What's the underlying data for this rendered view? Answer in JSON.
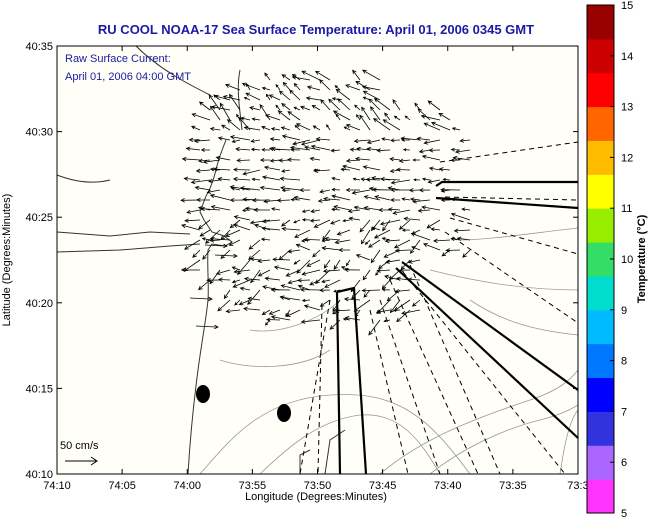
{
  "title": "RU COOL  NOAA-17  Sea Surface Temperature:  April 01, 2006 0345 GMT",
  "current_note": [
    "Raw Surface Current:",
    "April 01, 2006 04:00 GMT"
  ],
  "scale_arrow_label": "50 cm/s",
  "x_axis": {
    "label": "Longitude (Degrees:Minutes)",
    "ticks": [
      "74:10",
      "74:05",
      "74:00",
      "73:55",
      "73:50",
      "73:45",
      "73:40",
      "73:35",
      "73:3"
    ]
  },
  "y_axis": {
    "label": "Latitude (Degrees:Minutes)",
    "ticks": [
      "40:35",
      "40:30",
      "40:25",
      "40:20",
      "40:15",
      "40:10"
    ]
  },
  "colorbar": {
    "label": "Temperature (°C)",
    "ticks": [
      "15",
      "14",
      "13",
      "12",
      "11",
      "10",
      "9",
      "8",
      "7",
      "6",
      "5"
    ],
    "colors": [
      "#ff33ff",
      "#aa66ff",
      "#3333dd",
      "#0000ff",
      "#0077ff",
      "#00bbff",
      "#00ddcc",
      "#33dd66",
      "#99ee00",
      "#ffff00",
      "#ffbb00",
      "#ff6600",
      "#ff0000",
      "#cc0000",
      "#990000"
    ]
  }
}
